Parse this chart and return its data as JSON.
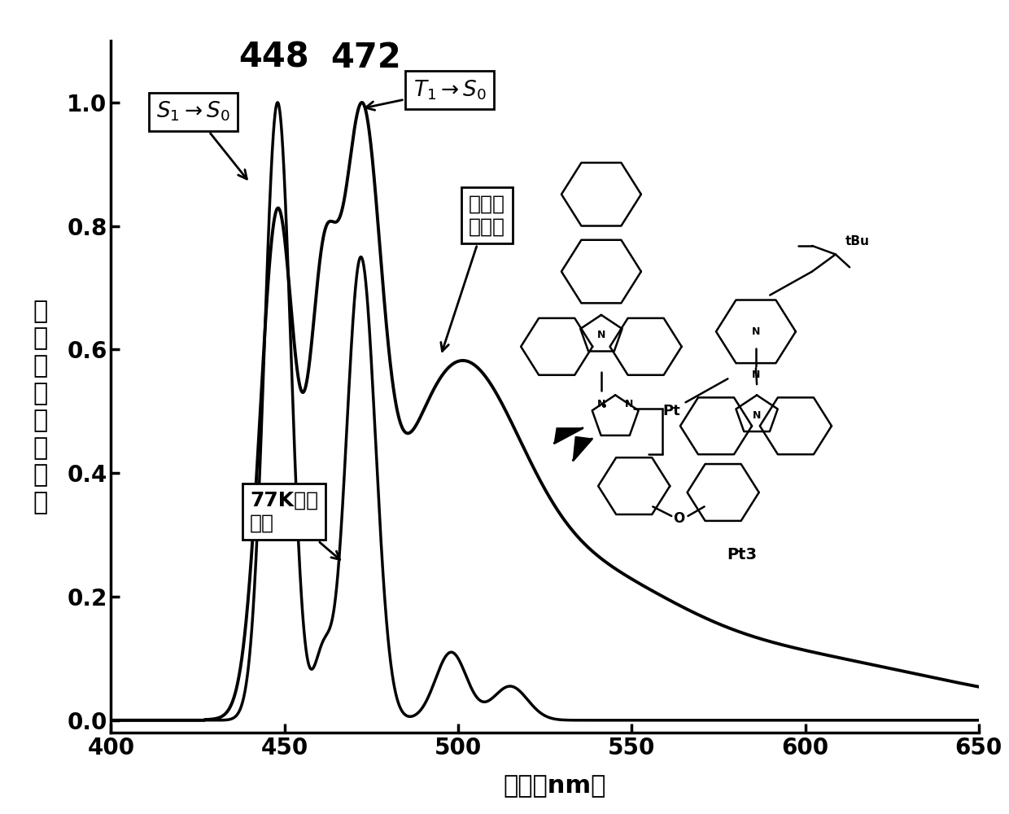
{
  "xlim": [
    400,
    650
  ],
  "ylim": [
    -0.02,
    1.1
  ],
  "xlabel": "波长（nm）",
  "xticks": [
    400,
    450,
    500,
    550,
    600,
    650
  ],
  "yticks": [
    0.0,
    0.2,
    0.4,
    0.6,
    0.8,
    1.0
  ],
  "peak1_label": "448",
  "peak2_label": "472",
  "lw_rt": 2.8,
  "lw_77k": 2.5,
  "fontsize_ticks": 20,
  "fontsize_labels": 22,
  "fontsize_annotations": 19,
  "fontsize_peaks": 30
}
